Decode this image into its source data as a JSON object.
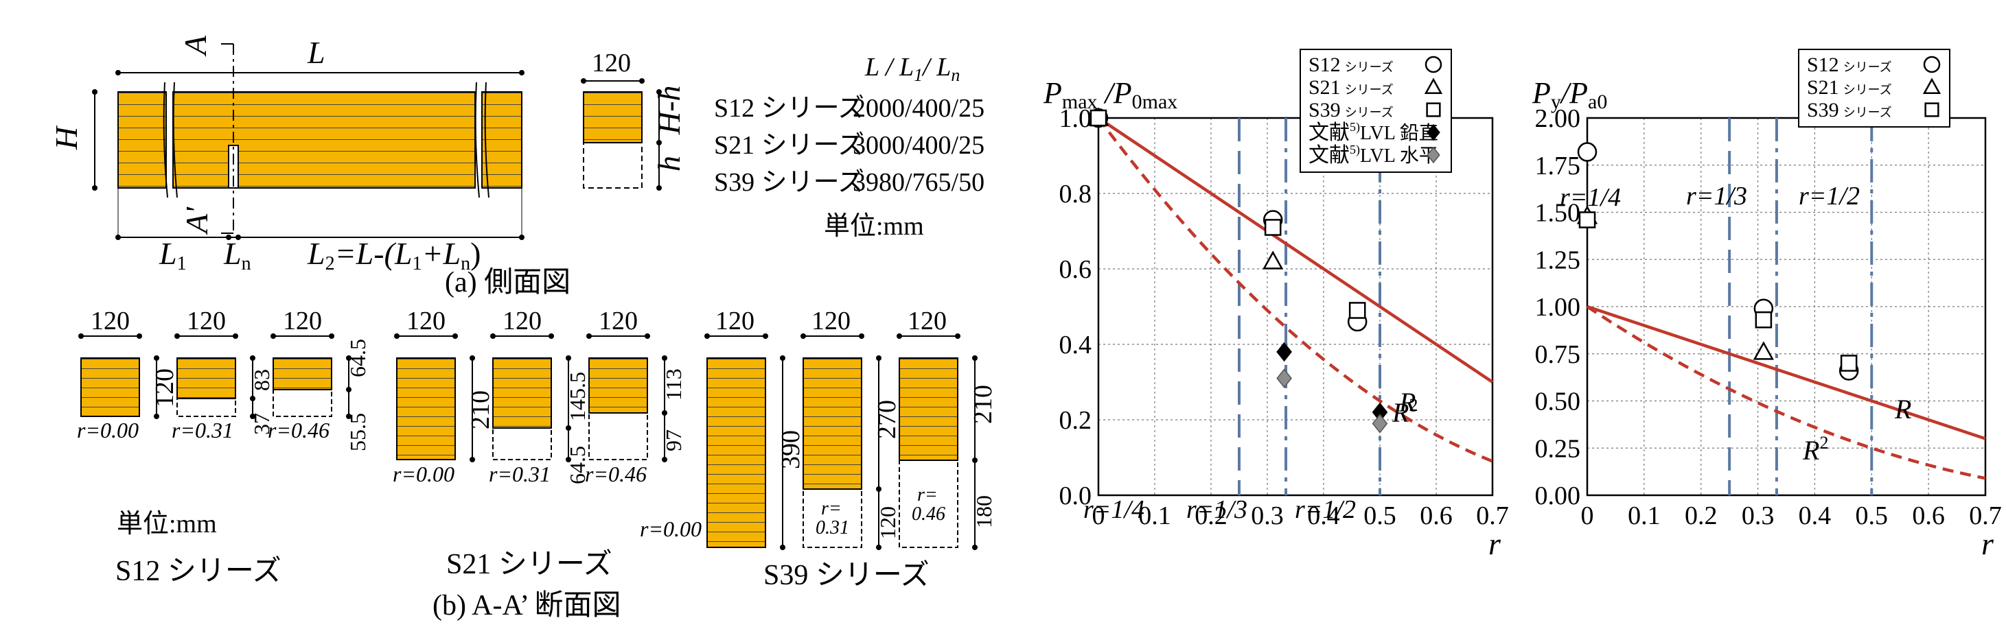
{
  "side_view": {
    "dim_L": "L",
    "dim_H": "H",
    "dim_L1": "L",
    "dim_L1_sub": "1",
    "dim_Ln": "L",
    "dim_Ln_sub": "n",
    "dim_L2": "L",
    "dim_L2_sub": "2",
    "dim_L2_expr": "=L-(L",
    "dim_L2_expr_tail": "+L",
    "dim_L2_expr_end": ")",
    "section_A": "A",
    "section_A2": "A'",
    "width_label": "120",
    "dim_Hh": "H-h",
    "dim_h": "h",
    "caption": "(a)  側面図"
  },
  "series_table": {
    "header": "L / L",
    "header_sub1": "1",
    "header_mid": "/ L",
    "header_sub2": "n",
    "rows": [
      {
        "name": "S12 シリーズ",
        "value": "2000/400/25"
      },
      {
        "name": "S21 シリーズ",
        "value": "3000/400/25"
      },
      {
        "name": "S39 シリーズ",
        "value": "3980/765/50"
      }
    ],
    "unit": "単位:mm"
  },
  "cross_sections": {
    "caption": "(b) A-A’ 断面図",
    "unit": "単位:mm",
    "s12": {
      "label": "S12 シリーズ",
      "width": "120",
      "items": [
        {
          "r": "r=0.00",
          "dims": [
            "120"
          ]
        },
        {
          "r": "r=0.31",
          "dims": [
            "83",
            "37"
          ]
        },
        {
          "r": "r=0.46",
          "dims": [
            "64.5",
            "55.5"
          ]
        }
      ]
    },
    "s21": {
      "label": "S21 シリーズ",
      "width": "120",
      "items": [
        {
          "r": "r=0.00",
          "dims": [
            "210"
          ]
        },
        {
          "r": "r=0.31",
          "dims": [
            "145.5",
            "64.5"
          ]
        },
        {
          "r": "r=0.46",
          "dims": [
            "113",
            "97"
          ]
        }
      ]
    },
    "s39": {
      "label": "S39 シリーズ",
      "width": "120",
      "items": [
        {
          "r": "r=0.00",
          "dims": [
            "390"
          ]
        },
        {
          "r": "r=0.31",
          "dims": [
            "270",
            "120"
          ],
          "r_split": [
            "r=",
            "0.31"
          ]
        },
        {
          "r": "r=0.46",
          "dims": [
            "210",
            "180"
          ],
          "r_split": [
            "r=",
            "0.46"
          ]
        }
      ]
    }
  },
  "chart_data": [
    {
      "type": "scatter",
      "ylabel": "Pmax /P0max",
      "ylabel_parts": [
        "P",
        "max",
        " /P",
        "0max"
      ],
      "xlabel": "r",
      "xlim": [
        0,
        0.7
      ],
      "ylim": [
        0,
        1.0
      ],
      "xticks": [
        "0",
        "0.1",
        "0.2",
        "0.3",
        "0.4",
        "0.5",
        "0.6",
        "0.7"
      ],
      "yticks": [
        "0.0",
        "0.2",
        "0.4",
        "0.6",
        "0.8",
        "1.0"
      ],
      "grid": true,
      "legend_position": "top-right",
      "legend": [
        {
          "label": "S12",
          "suffix": "シリーズ",
          "marker": "circle"
        },
        {
          "label": "S21",
          "suffix": "シリーズ",
          "marker": "triangle"
        },
        {
          "label": "S39",
          "suffix": "シリーズ",
          "marker": "square"
        },
        {
          "label": "文献",
          "sup": "5)",
          "suffix": "LVL 鉛直",
          "marker": "diamond-black"
        },
        {
          "label": "文献",
          "sup": "5)",
          "suffix": "LVL 水平",
          "marker": "diamond-gray"
        }
      ],
      "vlines": [
        {
          "x": 0.25,
          "label": "r=1/4",
          "style": "dash"
        },
        {
          "x": 0.333,
          "label": "r=1/3",
          "style": "dashdot"
        },
        {
          "x": 0.5,
          "label": "r=1/2",
          "style": "dashdot"
        }
      ],
      "curves": [
        {
          "name": "R",
          "style": "solid",
          "color": "#c0392b"
        },
        {
          "name": "R2",
          "label": "R",
          "sup": "2",
          "style": "dash",
          "color": "#c0392b"
        }
      ],
      "series": [
        {
          "name": "S12 シリーズ",
          "marker": "circle",
          "points": [
            [
              0,
              1.0
            ],
            [
              0.31,
              0.73
            ],
            [
              0.46,
              0.46
            ]
          ]
        },
        {
          "name": "S21 シリーズ",
          "marker": "triangle",
          "points": [
            [
              0,
              1.0
            ],
            [
              0.31,
              0.62
            ]
          ]
        },
        {
          "name": "S39 シリーズ",
          "marker": "square",
          "points": [
            [
              0,
              1.0
            ],
            [
              0.31,
              0.71
            ],
            [
              0.46,
              0.49
            ]
          ]
        },
        {
          "name": "文献5)LVL 鉛直",
          "marker": "diamond-black",
          "points": [
            [
              0.33,
              0.38
            ],
            [
              0.5,
              0.22
            ]
          ]
        },
        {
          "name": "文献5)LVL 水平",
          "marker": "diamond-gray",
          "points": [
            [
              0.33,
              0.31
            ],
            [
              0.5,
              0.19
            ]
          ]
        }
      ]
    },
    {
      "type": "scatter",
      "ylabel": "Py/Pa0",
      "ylabel_parts": [
        "P",
        "y",
        "/P",
        "a0"
      ],
      "xlabel": "r",
      "xlim": [
        0,
        0.7
      ],
      "ylim": [
        0,
        2.0
      ],
      "xticks": [
        "0",
        "0.1",
        "0.2",
        "0.3",
        "0.4",
        "0.5",
        "0.6",
        "0.7"
      ],
      "yticks": [
        "0.00",
        "0.25",
        "0.50",
        "0.75",
        "1.00",
        "1.25",
        "1.50",
        "1.75",
        "2.00"
      ],
      "grid": true,
      "legend_position": "top-right",
      "legend": [
        {
          "label": "S12",
          "suffix": "シリーズ",
          "marker": "circle"
        },
        {
          "label": "S21",
          "suffix": "シリーズ",
          "marker": "triangle"
        },
        {
          "label": "S39",
          "suffix": "シリーズ",
          "marker": "square"
        }
      ],
      "vlines": [
        {
          "x": 0.25,
          "label": "r=1/4",
          "style": "dash"
        },
        {
          "x": 0.333,
          "label": "r=1/3",
          "style": "dashdot"
        },
        {
          "x": 0.5,
          "label": "r=1/2",
          "style": "dashdot"
        }
      ],
      "curves": [
        {
          "name": "R",
          "style": "solid",
          "color": "#c0392b"
        },
        {
          "name": "R2",
          "label": "R",
          "sup": "2",
          "style": "dash",
          "color": "#c0392b"
        }
      ],
      "series": [
        {
          "name": "S12 シリーズ",
          "marker": "circle",
          "points": [
            [
              0,
              1.82
            ],
            [
              0.31,
              0.99
            ],
            [
              0.46,
              0.66
            ]
          ]
        },
        {
          "name": "S21 シリーズ",
          "marker": "triangle",
          "points": [
            [
              0,
              1.48
            ],
            [
              0.31,
              0.76
            ]
          ]
        },
        {
          "name": "S39 シリーズ",
          "marker": "square",
          "points": [
            [
              0,
              1.46
            ],
            [
              0.31,
              0.93
            ],
            [
              0.46,
              0.7
            ]
          ]
        }
      ]
    }
  ],
  "colors": {
    "wood": "#f5b400",
    "curve": "#c0392b",
    "vline": "#5b7aa3",
    "gray_marker": "#8c8c8c"
  }
}
